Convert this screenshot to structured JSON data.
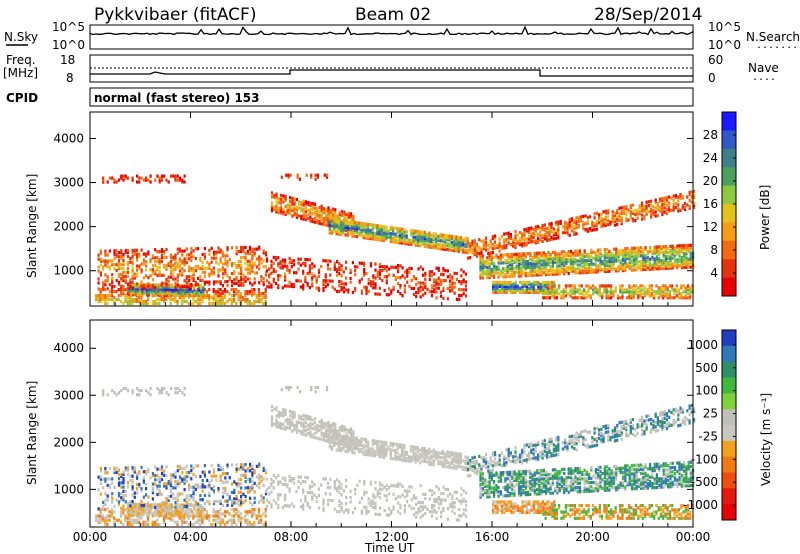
{
  "header": {
    "title": "Pykkvibaer (fitACF)",
    "beam": "Beam 02",
    "date": "28/Sep/2014"
  },
  "strip_nsky": {
    "label": "N.Sky",
    "tick_top": "10^5",
    "tick_bottom": "10^0",
    "right_tick_top": "10^5",
    "right_tick_bottom": "10^0",
    "right_label": "N.Search",
    "right_line": "......."
  },
  "strip_freq": {
    "label_line1": "Freq.",
    "label_line2": "[MHz]",
    "tick_top": "18",
    "tick_bottom": "8",
    "right_tick_top": "60",
    "right_tick_bottom": "0",
    "right_label": "Nave",
    "right_line": "....",
    "cpid_label": "CPID",
    "cpid_value": "normal (fast stereo) 153"
  },
  "chart_data": [
    {
      "type": "heatmap",
      "name": "power",
      "ylabel": "Slant Range [km]",
      "xlabel": "Time UT",
      "x_ticks": [
        "00:00",
        "04:00",
        "08:00",
        "12:00",
        "16:00",
        "20:00",
        "00:00"
      ],
      "y_ticks": [
        "1000",
        "2000",
        "3000",
        "4000"
      ],
      "ylim": [
        200,
        4600
      ],
      "colorbar": {
        "label": "Power [dB]",
        "ticks": [
          "4",
          "8",
          "12",
          "16",
          "20",
          "24",
          "28"
        ],
        "colors": [
          "#1a1aff",
          "#2e59c7",
          "#3f7f8a",
          "#4aa05c",
          "#8cc93e",
          "#e5c21b",
          "#f59d16",
          "#f36a12",
          "#e53310",
          "#e80000"
        ]
      }
    },
    {
      "type": "heatmap",
      "name": "velocity",
      "ylabel": "Slant Range [km]",
      "xlabel": "Time UT",
      "x_ticks": [
        "00:00",
        "04:00",
        "08:00",
        "12:00",
        "16:00",
        "20:00",
        "00:00"
      ],
      "y_ticks": [
        "1000",
        "2000",
        "3000",
        "4000"
      ],
      "ylim": [
        200,
        4600
      ],
      "colorbar": {
        "label": "Velocity [m s⁻¹]",
        "ticks": [
          "1000",
          "500",
          "100",
          "25",
          "-25",
          "-100",
          "-500",
          "-1000"
        ],
        "colors": [
          "#1f3fbf",
          "#2f79b8",
          "#2e8e6a",
          "#3fb83f",
          "#7fd13a",
          "#c0c0b8",
          "#c8c8c0",
          "#f2a11f",
          "#f27a14",
          "#ef4d10",
          "#e61a0a",
          "#e60000"
        ]
      }
    }
  ],
  "colors": {
    "frame": "#000000",
    "blank": "#ffffff"
  }
}
